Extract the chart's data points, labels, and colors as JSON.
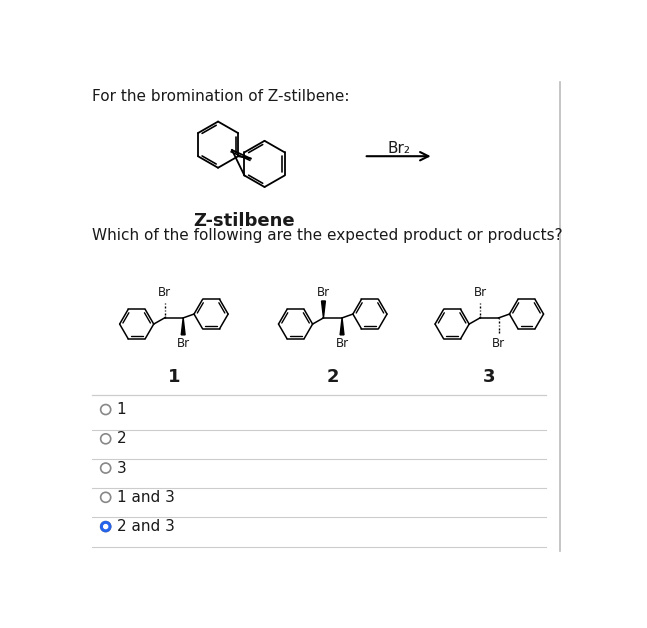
{
  "title_text": "For the bromination of Z-stilbene:",
  "question_text": "Which of the following are the expected product or products?",
  "stilbene_label": "Z-stilbene",
  "reagent_label": "Br₂",
  "product_labels": [
    "1",
    "2",
    "3"
  ],
  "choices": [
    "1",
    "2",
    "3",
    "1 and 3",
    "2 and 3"
  ],
  "selected_choice": 4,
  "bg_color": "#ffffff",
  "text_color": "#1a1a1a",
  "radio_color": "#2563eb",
  "line_color": "#cccccc",
  "font_size_title": 11,
  "font_size_question": 11,
  "font_size_label": 12,
  "font_size_choice": 11
}
